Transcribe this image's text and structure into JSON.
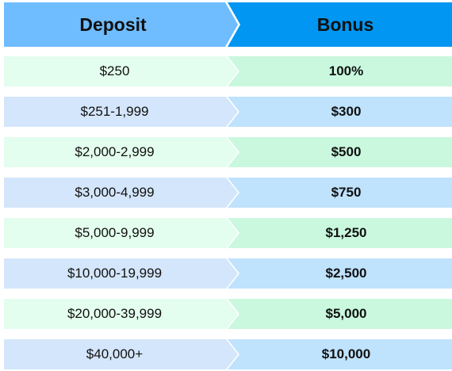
{
  "header": {
    "deposit_label": "Deposit",
    "bonus_label": "Bonus"
  },
  "rows": [
    {
      "deposit": "$250",
      "bonus": "100%"
    },
    {
      "deposit": "$251-1,999",
      "bonus": "$300"
    },
    {
      "deposit": "$2,000-2,999",
      "bonus": "$500"
    },
    {
      "deposit": "$3,000-4,999",
      "bonus": "$750"
    },
    {
      "deposit": "$5,000-9,999",
      "bonus": "$1,250"
    },
    {
      "deposit": "$10,000-19,999",
      "bonus": "$2,500"
    },
    {
      "deposit": "$20,000-39,999",
      "bonus": "$5,000"
    },
    {
      "deposit": "$40,000+",
      "bonus": "$10,000"
    }
  ],
  "colors": {
    "header_left": "#6fbcff",
    "header_right": "#0096f2",
    "green_left": "#e3fdee",
    "green_right": "#c9f8de",
    "blue_left": "#d4e6fb",
    "blue_right": "#bfe2fd"
  }
}
